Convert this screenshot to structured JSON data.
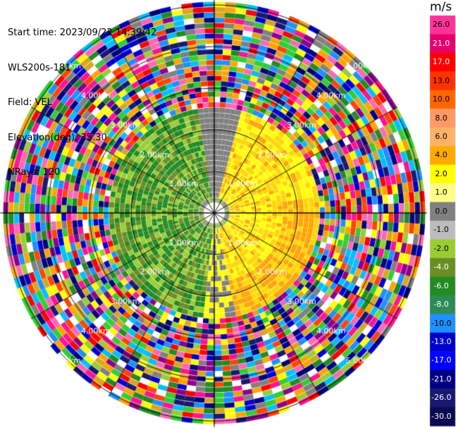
{
  "header": {
    "start_time": "Start time: 2023/09/22 14:39:42",
    "instrument": "WLS200s-181",
    "field": "Field: VEL",
    "elevation": "Elevation(deg): 35.30",
    "nrays": "NRays: 120"
  },
  "colorbar": {
    "unit": "m/s",
    "ticks": [
      "26.0",
      "21.0",
      "17.0",
      "13.0",
      "10.0",
      "8.0",
      "6.0",
      "4.0",
      "2.0",
      "1.0",
      "0.0",
      "-1.0",
      "-2.0",
      "-4.0",
      "-6.0",
      "-8.0",
      "-10.0",
      "-13.0",
      "-17.0",
      "-21.0",
      "-26.0",
      "-30.0"
    ],
    "colors": [
      "#ff3399",
      "#e6006e",
      "#ff0000",
      "#ff3300",
      "#ff6600",
      "#ff9966",
      "#ffb366",
      "#ffaa00",
      "#ffff00",
      "#ffff88",
      "#808080",
      "#bcbcbc",
      "#9acd32",
      "#6b8e23",
      "#228b22",
      "#2e8b57",
      "#1e90ff",
      "#0000cd",
      "#0000ff",
      "#000080",
      "#191970",
      "#0a0a50"
    ]
  },
  "range_labels": [
    "1.00km",
    "2.00km",
    "3.00km",
    "4.00km",
    "5.00km"
  ],
  "ppi": {
    "rays": 120,
    "gates": 40,
    "valid_range_km": 2.5,
    "noise_palette": [
      "#ff1493",
      "#0000cd",
      "#ffff00",
      "#ff0000",
      "#228b22",
      "#ff69b4",
      "#000080",
      "#ffa500",
      "#808080",
      "#00bfff",
      "#8b008b",
      "#ffffff",
      "#32cd32",
      "#ff4500",
      "#1e90ff",
      "#daa520",
      "#191970",
      "#9acd32"
    ]
  }
}
